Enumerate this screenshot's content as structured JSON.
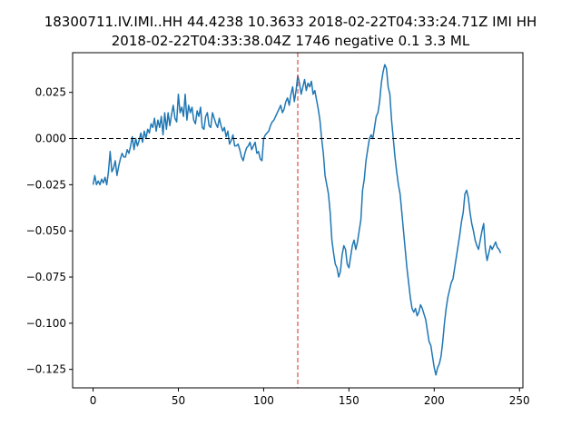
{
  "chart_data": {
    "type": "line",
    "title_lines": [
      "18300711.IV.IMI..HH 44.4238 10.3633 2018-02-22T04:33:24.71Z IMI HH",
      "2018-02-22T04:33:38.04Z 1746 negative 0.1 3.3 ML"
    ],
    "xlabel": "",
    "ylabel": "",
    "xlim": [
      -12,
      252
    ],
    "ylim": [
      -0.135,
      0.0465
    ],
    "x_ticks": [
      0,
      50,
      100,
      150,
      200,
      250
    ],
    "y_ticks": [
      -0.125,
      -0.1,
      -0.075,
      -0.05,
      -0.025,
      0.0,
      0.025
    ],
    "y_tick_labels": [
      "−0.125",
      "−0.100",
      "−0.075",
      "−0.050",
      "−0.025",
      "0.000",
      "0.025"
    ],
    "grid": false,
    "reference_lines": {
      "horizontal_zero": {
        "y": 0.0,
        "color": "#000000",
        "style": "dashed"
      },
      "vertical_pick": {
        "x": 120,
        "color": "#d62728",
        "style": "dashed"
      }
    },
    "series": [
      {
        "color": "#1f77b4",
        "x_start": 0,
        "x_step": 1,
        "values": [
          -0.025,
          -0.02,
          -0.025,
          -0.023,
          -0.025,
          -0.022,
          -0.024,
          -0.021,
          -0.025,
          -0.018,
          -0.007,
          -0.018,
          -0.016,
          -0.012,
          -0.02,
          -0.015,
          -0.011,
          -0.008,
          -0.01,
          -0.01,
          -0.006,
          -0.008,
          -0.004,
          0.001,
          -0.006,
          0.0,
          -0.004,
          -0.001,
          0.003,
          -0.002,
          0.004,
          0.0,
          0.005,
          0.003,
          0.008,
          0.006,
          0.011,
          0.004,
          0.01,
          0.006,
          0.012,
          0.002,
          0.014,
          0.005,
          0.014,
          0.007,
          0.013,
          0.018,
          0.011,
          0.009,
          0.024,
          0.014,
          0.017,
          0.012,
          0.024,
          0.01,
          0.018,
          0.014,
          0.017,
          0.01,
          0.008,
          0.015,
          0.012,
          0.017,
          0.006,
          0.005,
          0.012,
          0.014,
          0.007,
          0.006,
          0.014,
          0.011,
          0.008,
          0.006,
          0.011,
          0.007,
          0.004,
          0.006,
          0.001,
          0.004,
          -0.003,
          -0.001,
          0.002,
          -0.004,
          -0.004,
          -0.003,
          -0.006,
          -0.01,
          -0.012,
          -0.008,
          -0.005,
          -0.004,
          -0.002,
          -0.006,
          -0.004,
          -0.002,
          -0.008,
          -0.007,
          -0.011,
          -0.012,
          0.0,
          0.002,
          0.003,
          0.004,
          0.007,
          0.009,
          0.01,
          0.012,
          0.014,
          0.016,
          0.018,
          0.014,
          0.016,
          0.02,
          0.022,
          0.018,
          0.024,
          0.028,
          0.02,
          0.026,
          0.034,
          0.03,
          0.024,
          0.028,
          0.032,
          0.026,
          0.03,
          0.028,
          0.031,
          0.024,
          0.026,
          0.021,
          0.016,
          0.01,
          0.0,
          -0.008,
          -0.02,
          -0.025,
          -0.03,
          -0.04,
          -0.055,
          -0.062,
          -0.068,
          -0.07,
          -0.075,
          -0.072,
          -0.063,
          -0.058,
          -0.06,
          -0.068,
          -0.07,
          -0.064,
          -0.058,
          -0.055,
          -0.06,
          -0.056,
          -0.05,
          -0.044,
          -0.028,
          -0.022,
          -0.012,
          -0.006,
          0.0,
          0.002,
          0.0,
          0.006,
          0.012,
          0.014,
          0.02,
          0.03,
          0.036,
          0.04,
          0.038,
          0.028,
          0.024,
          0.01,
          0.0,
          -0.01,
          -0.018,
          -0.025,
          -0.03,
          -0.04,
          -0.05,
          -0.06,
          -0.07,
          -0.078,
          -0.086,
          -0.092,
          -0.094,
          -0.092,
          -0.096,
          -0.094,
          -0.09,
          -0.092,
          -0.095,
          -0.098,
          -0.104,
          -0.11,
          -0.112,
          -0.118,
          -0.124,
          -0.128,
          -0.124,
          -0.122,
          -0.118,
          -0.11,
          -0.1,
          -0.092,
          -0.086,
          -0.082,
          -0.078,
          -0.076,
          -0.07,
          -0.064,
          -0.058,
          -0.052,
          -0.045,
          -0.04,
          -0.03,
          -0.028,
          -0.032,
          -0.04,
          -0.046,
          -0.05,
          -0.055,
          -0.058,
          -0.06,
          -0.055,
          -0.05,
          -0.046,
          -0.06,
          -0.066,
          -0.062,
          -0.058,
          -0.06,
          -0.058,
          -0.056,
          -0.059,
          -0.06,
          -0.062
        ]
      }
    ]
  }
}
